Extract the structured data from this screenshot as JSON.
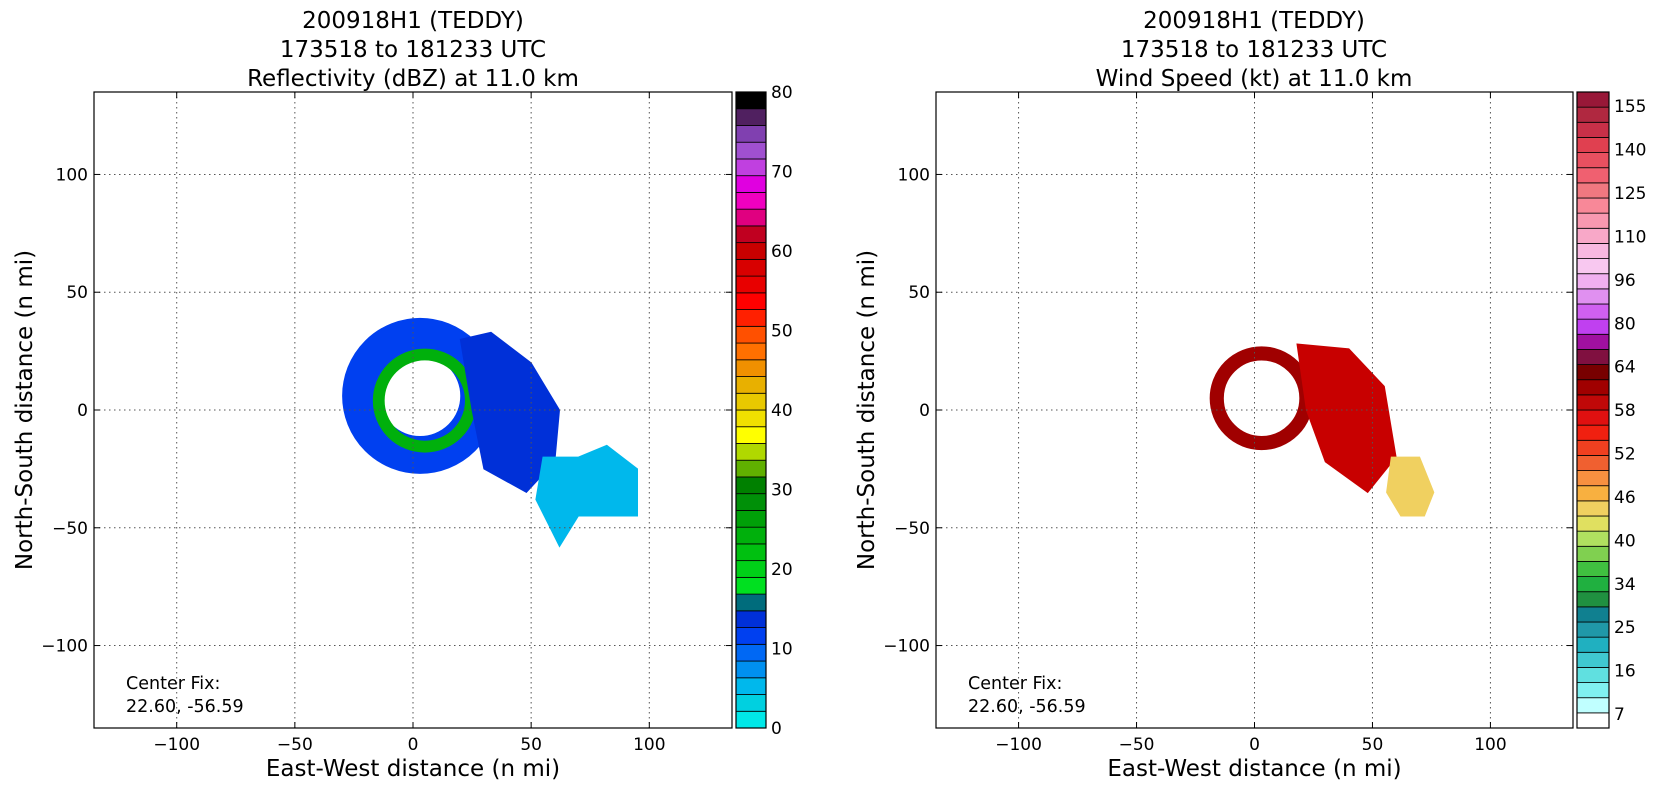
{
  "chart_data": [
    {
      "type": "heatmap",
      "title": [
        "200918H1 (TEDDY)",
        "173518 to 181233 UTC",
        "Reflectivity (dBZ) at 11.0 km"
      ],
      "xlabel": "East-West distance (n mi)",
      "ylabel": "North-South distance (n mi)",
      "xlim": [
        -135,
        135
      ],
      "ylim": [
        -135,
        135
      ],
      "xticks": [
        -100,
        -50,
        0,
        50,
        100
      ],
      "yticks": [
        -100,
        -50,
        0,
        50,
        100
      ],
      "xtick_labels": [
        "−100",
        "−50",
        "0",
        "50",
        "100"
      ],
      "ytick_labels": [
        "−100",
        "−50",
        "0",
        "50",
        "100"
      ],
      "grid": true,
      "annotation": [
        "Center Fix:",
        "22.60, -56.59"
      ],
      "colorbar": {
        "ticks": [
          0,
          10,
          20,
          30,
          40,
          50,
          60,
          70,
          80
        ],
        "tick_labels": [
          "0",
          "10",
          "20",
          "30",
          "40",
          "50",
          "60",
          "70",
          "80"
        ],
        "colors": [
          "#00e8e8",
          "#00d0e0",
          "#00b8ec",
          "#0090f0",
          "#0068f4",
          "#0040f0",
          "#0030d8",
          "#006c7c",
          "#00e020",
          "#00d018",
          "#00c010",
          "#00b00c",
          "#00a008",
          "#009008",
          "#008000",
          "#60b000",
          "#b0d800",
          "#ffff00",
          "#f0e000",
          "#e8c800",
          "#e8b000",
          "#f09000",
          "#ff7000",
          "#ff5000",
          "#ff2000",
          "#ff0000",
          "#e80000",
          "#d80000",
          "#c80000",
          "#c00020",
          "#e00080",
          "#f000c0",
          "#e000e0",
          "#c040e0",
          "#a050d0",
          "#8040b0",
          "#502060",
          "#000000"
        ]
      },
      "features": [
        {
          "kind": "ring",
          "cx": 3,
          "cy": 6,
          "r_in": 17,
          "r_out": 33,
          "color": "#0040f0",
          "values": [
            10
          ]
        },
        {
          "kind": "ring",
          "cx": 5,
          "cy": 4,
          "r_in": 17,
          "r_out": 22,
          "color": "#00b00c",
          "values": [
            25
          ]
        },
        {
          "kind": "band",
          "color": "#0030d8",
          "values": [
            13
          ],
          "points": [
            [
              20,
              30
            ],
            [
              33,
              33
            ],
            [
              50,
              20
            ],
            [
              62,
              0
            ],
            [
              60,
              -22
            ],
            [
              48,
              -35
            ],
            [
              30,
              -25
            ],
            [
              25,
              0
            ]
          ]
        },
        {
          "kind": "band",
          "color": "#00b8ec",
          "values": [
            5
          ],
          "points": [
            [
              55,
              -20
            ],
            [
              70,
              -20
            ],
            [
              82,
              -15
            ],
            [
              95,
              -25
            ],
            [
              95,
              -45
            ],
            [
              70,
              -45
            ],
            [
              62,
              -58
            ],
            [
              58,
              -50
            ],
            [
              52,
              -38
            ]
          ]
        }
      ]
    },
    {
      "type": "heatmap",
      "title": [
        "200918H1 (TEDDY)",
        "173518 to 181233 UTC",
        "Wind Speed (kt) at 11.0 km"
      ],
      "xlabel": "East-West distance (n mi)",
      "ylabel": "North-South distance (n mi)",
      "xlim": [
        -135,
        135
      ],
      "ylim": [
        -135,
        135
      ],
      "xticks": [
        -100,
        -50,
        0,
        50,
        100
      ],
      "yticks": [
        -100,
        -50,
        0,
        50,
        100
      ],
      "xtick_labels": [
        "−100",
        "−50",
        "0",
        "50",
        "100"
      ],
      "ytick_labels": [
        "−100",
        "−50",
        "0",
        "50",
        "100"
      ],
      "grid": true,
      "annotation": [
        "Center Fix:",
        "22.60, -56.59"
      ],
      "colorbar": {
        "tick_labels": [
          "7",
          "16",
          "25",
          "34",
          "40",
          "46",
          "52",
          "58",
          "64",
          "80",
          "96",
          "110",
          "125",
          "140",
          "155"
        ],
        "colors": [
          "#ffffff",
          "#c0ffff",
          "#80f0f0",
          "#60e0e0",
          "#40c8d0",
          "#20b0c0",
          "#2098a8",
          "#108090",
          "#209040",
          "#20b040",
          "#40c040",
          "#80d050",
          "#b0e060",
          "#e0e060",
          "#f0d060",
          "#f8b040",
          "#f89040",
          "#f06030",
          "#f04020",
          "#f02010",
          "#e01010",
          "#c00808",
          "#a00000",
          "#780000",
          "#801040",
          "#a010a0",
          "#c040f0",
          "#d060f0",
          "#e090f0",
          "#f0b0f0",
          "#f8c8f0",
          "#f8b8e0",
          "#f8a8c8",
          "#f898b0",
          "#f88898",
          "#f07880",
          "#f06070",
          "#e85060",
          "#e04050",
          "#c83048",
          "#b02840",
          "#981838"
        ]
      },
      "features": [
        {
          "kind": "ring",
          "cx": 3,
          "cy": 5,
          "r_in": 16,
          "r_out": 22,
          "color": "#a00000",
          "values": [
            55
          ]
        },
        {
          "kind": "band",
          "color": "#c80000",
          "values": [
            60
          ],
          "points": [
            [
              18,
              28
            ],
            [
              40,
              26
            ],
            [
              55,
              10
            ],
            [
              60,
              -20
            ],
            [
              48,
              -35
            ],
            [
              30,
              -22
            ],
            [
              22,
              0
            ]
          ]
        },
        {
          "kind": "band",
          "color": "#f0d060",
          "values": [
            45
          ],
          "points": [
            [
              58,
              -20
            ],
            [
              70,
              -20
            ],
            [
              76,
              -35
            ],
            [
              72,
              -45
            ],
            [
              62,
              -45
            ],
            [
              56,
              -35
            ]
          ]
        }
      ]
    }
  ]
}
